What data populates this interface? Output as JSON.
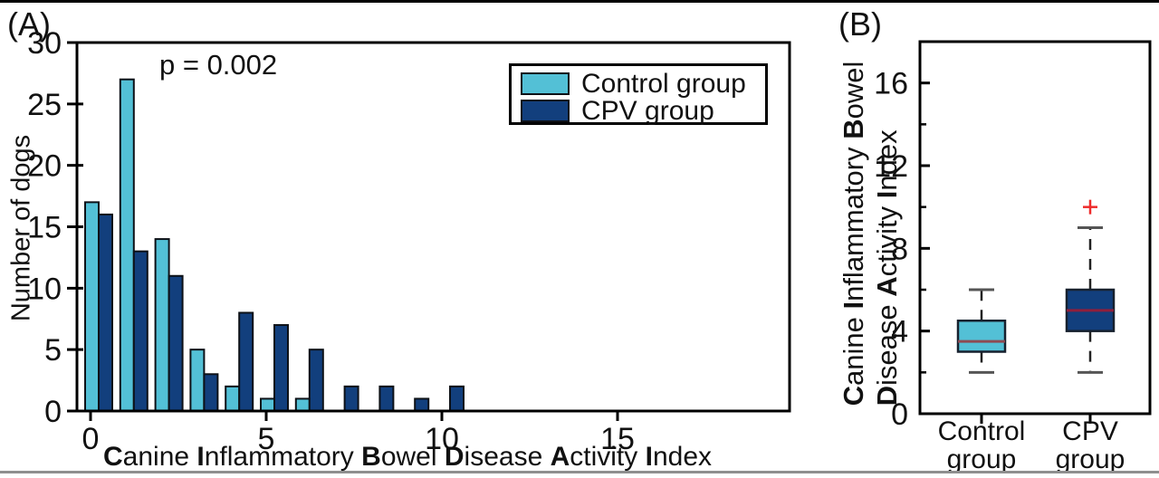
{
  "figure": {
    "panelA_label": "(A)",
    "panelB_label": "(B)",
    "annotation": "p = 0.002"
  },
  "colors": {
    "control": "#53c0d6",
    "cpv": "#123f7d",
    "bar_outline": "#0d1117",
    "frame": "#000000",
    "text": "#111111",
    "median_control": "#8e4a52",
    "median_cpv": "#8f1f3c",
    "outlier_red": "#ee2b2b",
    "whisker": "#222222",
    "cap": "#555555",
    "bottom_rule": "#8f8f8f"
  },
  "legend": {
    "items": [
      {
        "label": "Control group",
        "color_key": "control"
      },
      {
        "label": "CPV group",
        "color_key": "cpv"
      }
    ]
  },
  "panelA": {
    "ylabel": "Number of dogs",
    "xlabel_words": [
      "Canine",
      "Inflammatory",
      "Bowel",
      "Disease",
      "Activity",
      "Index"
    ],
    "yticks": [
      0,
      5,
      10,
      15,
      20,
      25,
      30
    ],
    "xticks": [
      0,
      5,
      10,
      15
    ]
  },
  "panelB": {
    "ylabel_lines_words": [
      [
        "Canine",
        "Inflammatory",
        "Bowel"
      ],
      [
        "Disease",
        "Activity",
        "Index"
      ]
    ],
    "yticks_major": [
      0,
      4,
      8,
      12,
      16
    ],
    "yticks_minor": [
      2,
      6,
      10,
      14
    ],
    "category_lines": [
      [
        "Control",
        "group"
      ],
      [
        "CPV",
        "group"
      ]
    ]
  },
  "chart_data": [
    {
      "type": "bar",
      "panel": "A",
      "title": "",
      "xlabel": "Canine Inflammatory Bowel Disease Activity Index",
      "ylabel": "Number of dogs",
      "annotation": "p = 0.002",
      "x": [
        0,
        1,
        2,
        3,
        4,
        5,
        6,
        7,
        8,
        9,
        10
      ],
      "series": [
        {
          "name": "Control group",
          "values": [
            17,
            27,
            14,
            5,
            2,
            1,
            1,
            0,
            0,
            0,
            0
          ]
        },
        {
          "name": "CPV group",
          "values": [
            16,
            13,
            11,
            3,
            8,
            7,
            5,
            2,
            2,
            1,
            2
          ]
        }
      ],
      "xlim": [
        -0.5,
        19.9
      ],
      "ylim": [
        0,
        30
      ],
      "legend_position": "upper right",
      "grid": false
    },
    {
      "type": "boxplot",
      "panel": "B",
      "ylabel": "Canine Inflammatory Bowel Disease Activity Index",
      "categories": [
        "Control group",
        "CPV group"
      ],
      "boxes": [
        {
          "name": "Control group",
          "whisker_low": 2,
          "q1": 3,
          "median": 3.5,
          "q3": 4.5,
          "whisker_high": 6,
          "outliers": []
        },
        {
          "name": "CPV group",
          "whisker_low": 2,
          "q1": 4,
          "median": 5,
          "q3": 6,
          "whisker_high": 9,
          "outliers": [
            10
          ]
        }
      ],
      "ylim": [
        0,
        18
      ],
      "grid": false
    }
  ]
}
